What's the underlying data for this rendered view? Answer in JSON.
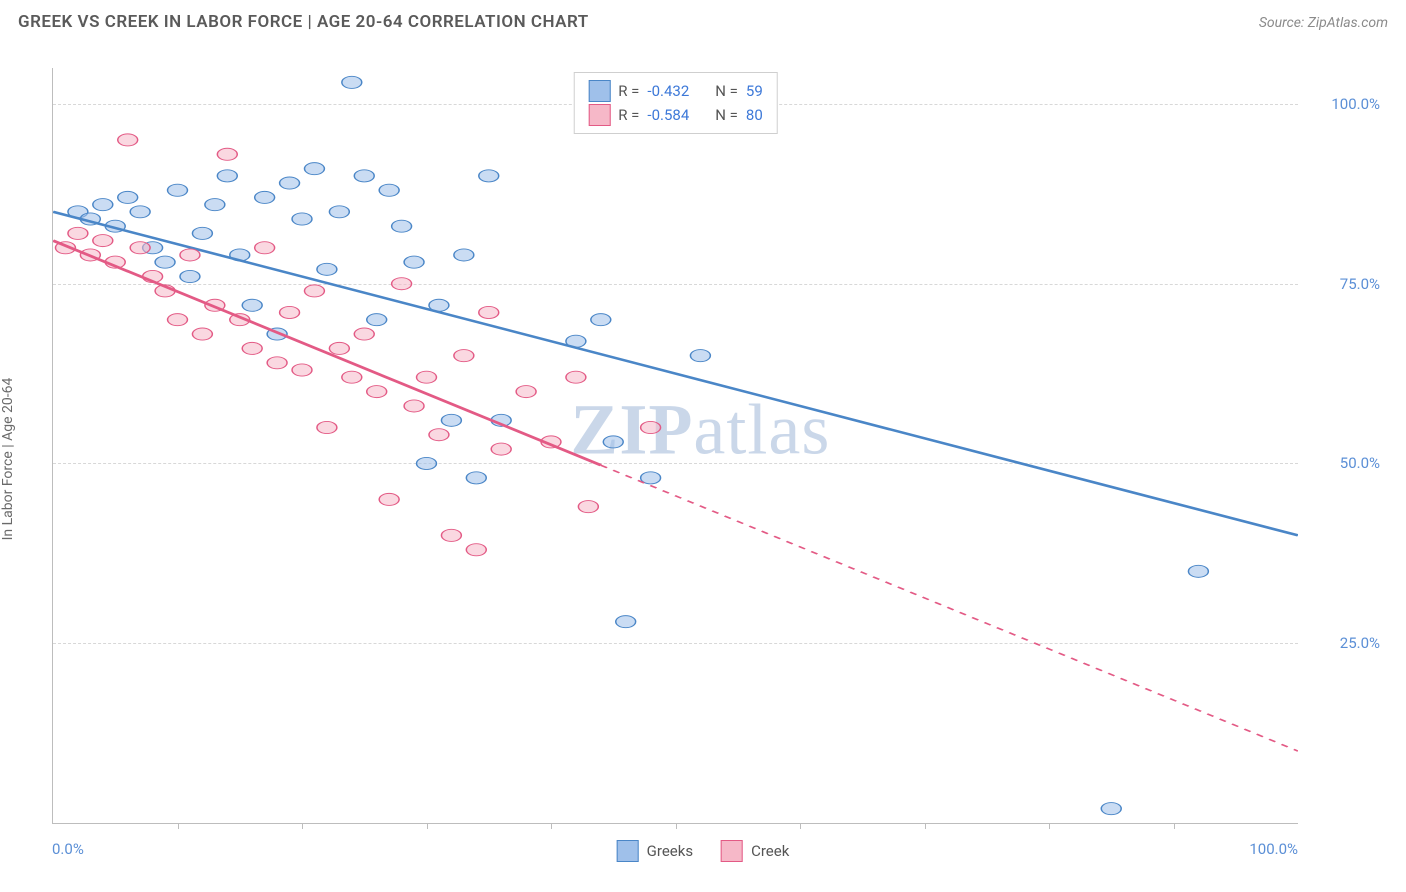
{
  "header": {
    "title": "GREEK VS CREEK IN LABOR FORCE | AGE 20-64 CORRELATION CHART",
    "source": "Source: ZipAtlas.com"
  },
  "chart": {
    "type": "scatter",
    "y_axis_title": "In Labor Force | Age 20-64",
    "xlim": [
      0,
      100
    ],
    "ylim": [
      0,
      105
    ],
    "x_tick_step": 10,
    "y_ticks": [
      25,
      50,
      75,
      100
    ],
    "y_tick_labels": [
      "25.0%",
      "50.0%",
      "75.0%",
      "100.0%"
    ],
    "x_min_label": "0.0%",
    "x_max_label": "100.0%",
    "background_color": "#ffffff",
    "grid_color": "#d8d8d8",
    "axis_color": "#bdbdbd",
    "marker_radius": 8,
    "marker_opacity": 0.55,
    "line_width": 2.5,
    "series": [
      {
        "name": "Greeks",
        "color_fill": "#9fc0ea",
        "color_stroke": "#4a86c7",
        "r_value": "-0.432",
        "n_value": "59",
        "trend": {
          "x1": 0,
          "y1": 85,
          "x2": 100,
          "y2": 40,
          "solid_until_x": 100
        },
        "points": [
          [
            2,
            85
          ],
          [
            3,
            84
          ],
          [
            4,
            86
          ],
          [
            5,
            83
          ],
          [
            6,
            87
          ],
          [
            7,
            85
          ],
          [
            8,
            80
          ],
          [
            9,
            78
          ],
          [
            10,
            88
          ],
          [
            11,
            76
          ],
          [
            12,
            82
          ],
          [
            13,
            86
          ],
          [
            14,
            90
          ],
          [
            15,
            79
          ],
          [
            16,
            72
          ],
          [
            17,
            87
          ],
          [
            18,
            68
          ],
          [
            19,
            89
          ],
          [
            20,
            84
          ],
          [
            21,
            91
          ],
          [
            22,
            77
          ],
          [
            23,
            85
          ],
          [
            24,
            103
          ],
          [
            25,
            90
          ],
          [
            26,
            70
          ],
          [
            27,
            88
          ],
          [
            28,
            83
          ],
          [
            29,
            78
          ],
          [
            30,
            50
          ],
          [
            31,
            72
          ],
          [
            32,
            56
          ],
          [
            33,
            79
          ],
          [
            34,
            48
          ],
          [
            35,
            90
          ],
          [
            36,
            56
          ],
          [
            42,
            67
          ],
          [
            44,
            70
          ],
          [
            45,
            53
          ],
          [
            46,
            28
          ],
          [
            48,
            48
          ],
          [
            52,
            65
          ],
          [
            54,
            103
          ],
          [
            85,
            2
          ],
          [
            92,
            35
          ]
        ]
      },
      {
        "name": "Creek",
        "color_fill": "#f6b8c8",
        "color_stroke": "#e35a85",
        "r_value": "-0.584",
        "n_value": "80",
        "trend": {
          "x1": 0,
          "y1": 81,
          "x2": 100,
          "y2": 10,
          "solid_until_x": 44
        },
        "points": [
          [
            1,
            80
          ],
          [
            2,
            82
          ],
          [
            3,
            79
          ],
          [
            4,
            81
          ],
          [
            5,
            78
          ],
          [
            6,
            95
          ],
          [
            7,
            80
          ],
          [
            8,
            76
          ],
          [
            9,
            74
          ],
          [
            10,
            70
          ],
          [
            11,
            79
          ],
          [
            12,
            68
          ],
          [
            13,
            72
          ],
          [
            14,
            93
          ],
          [
            15,
            70
          ],
          [
            16,
            66
          ],
          [
            17,
            80
          ],
          [
            18,
            64
          ],
          [
            19,
            71
          ],
          [
            20,
            63
          ],
          [
            21,
            74
          ],
          [
            22,
            55
          ],
          [
            23,
            66
          ],
          [
            24,
            62
          ],
          [
            25,
            68
          ],
          [
            26,
            60
          ],
          [
            27,
            45
          ],
          [
            28,
            75
          ],
          [
            29,
            58
          ],
          [
            30,
            62
          ],
          [
            31,
            54
          ],
          [
            32,
            40
          ],
          [
            33,
            65
          ],
          [
            34,
            38
          ],
          [
            35,
            71
          ],
          [
            36,
            52
          ],
          [
            38,
            60
          ],
          [
            40,
            53
          ],
          [
            42,
            62
          ],
          [
            43,
            44
          ],
          [
            48,
            55
          ]
        ]
      }
    ],
    "legend_top": {
      "r_label": "R =",
      "n_label": "N ="
    },
    "legend_bottom": [
      {
        "label": "Greeks",
        "fill": "#9fc0ea",
        "stroke": "#4a86c7"
      },
      {
        "label": "Creek",
        "fill": "#f6b8c8",
        "stroke": "#e35a85"
      }
    ],
    "watermark": {
      "bold": "ZIP",
      "rest": "atlas"
    }
  }
}
